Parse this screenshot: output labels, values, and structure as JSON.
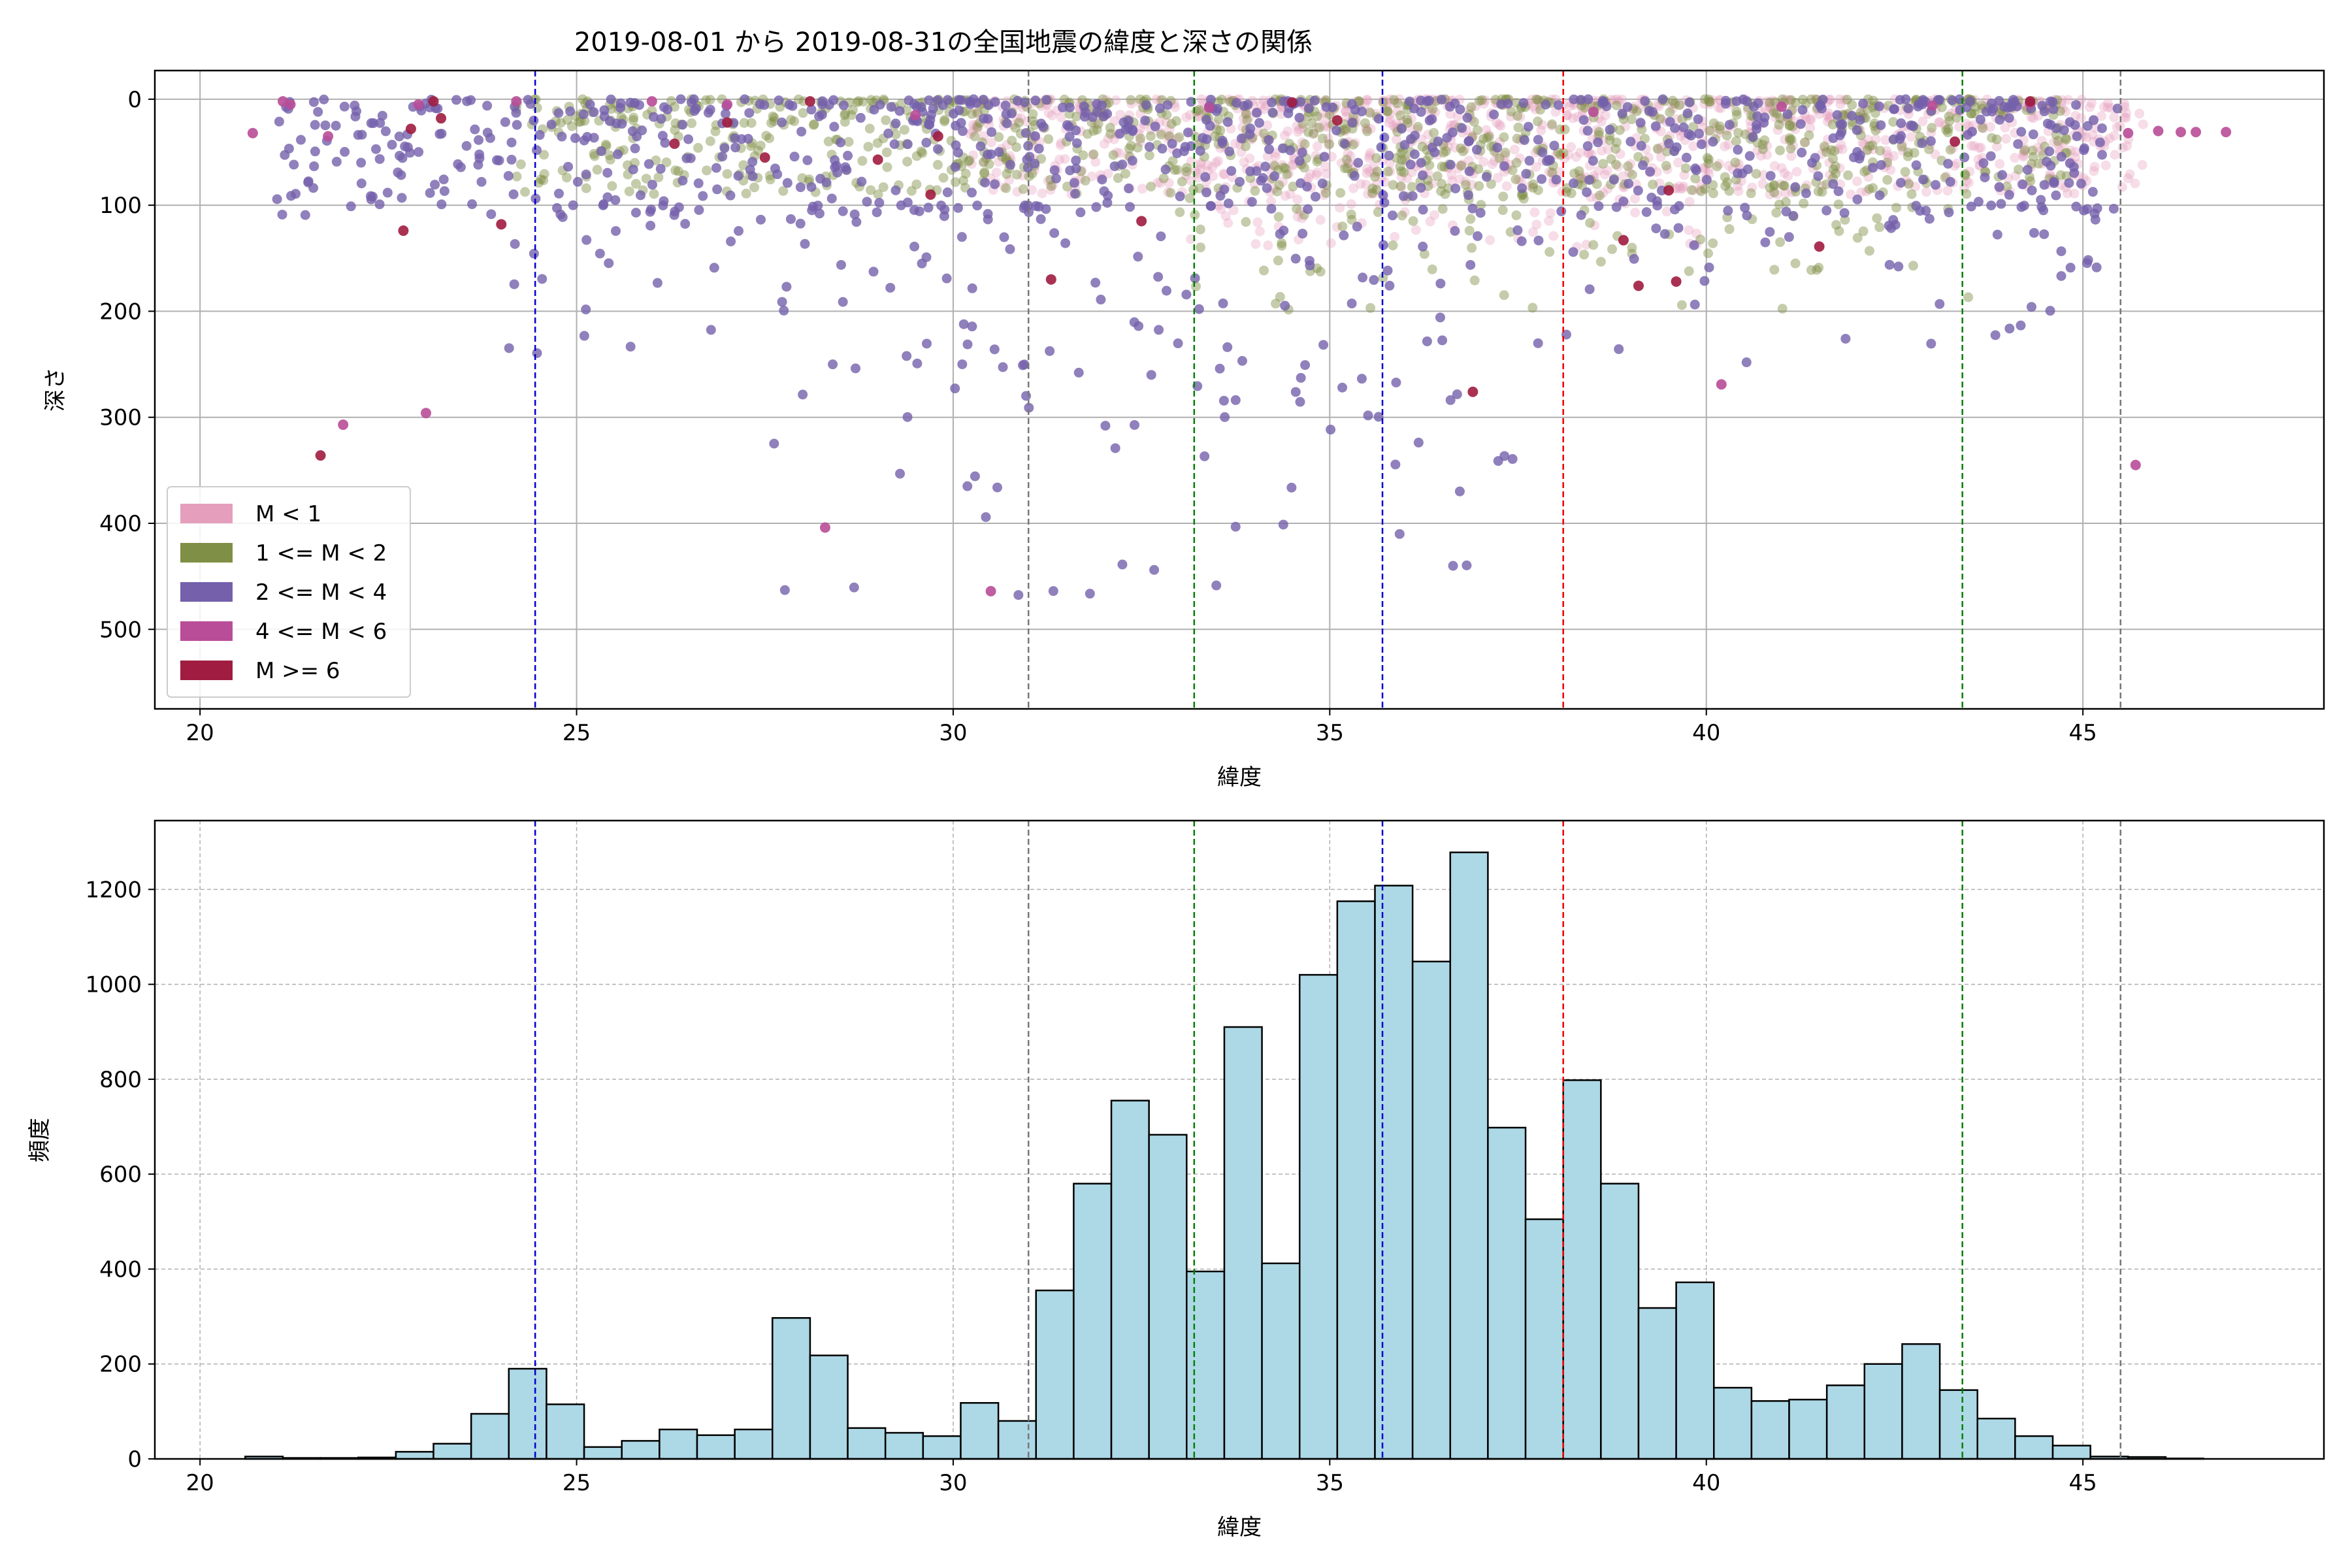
{
  "chart_data": [
    {
      "type": "scatter",
      "title": "2019-08-01 から 2019-08-31の全国地震の緯度と深さの関係",
      "xlabel": "緯度",
      "ylabel": "深さ",
      "xlim": [
        19.4,
        48.2
      ],
      "ylim": [
        575,
        -27
      ],
      "y_inverted": true,
      "grid": true,
      "legend_position": "lower-left",
      "xticks": [
        20,
        25,
        30,
        35,
        40,
        45
      ],
      "yticks": [
        0,
        100,
        200,
        300,
        400,
        500
      ],
      "series": [
        {
          "name": "M < 1",
          "color": "#e59fbd",
          "clusters": [
            {
              "lat_range": [
                30.2,
                45.8
              ],
              "depth_range": [
                0,
                90
              ],
              "count": 900
            },
            {
              "lat_range": [
                33.0,
                40.0
              ],
              "depth_range": [
                60,
                140
              ],
              "count": 120
            }
          ]
        },
        {
          "name": "1 <= M < 2",
          "color": "#7f8f45",
          "clusters": [
            {
              "lat_range": [
                24.2,
                44.8
              ],
              "depth_range": [
                0,
                90
              ],
              "count": 900
            },
            {
              "lat_range": [
                33.0,
                43.5
              ],
              "depth_range": [
                80,
                200
              ],
              "count": 120
            }
          ]
        },
        {
          "name": "2 <= M < 4",
          "color": "#7460ab",
          "clusters": [
            {
              "lat_range": [
                21.0,
                45.5
              ],
              "depth_range": [
                0,
                110
              ],
              "count": 750
            },
            {
              "lat_range": [
                24.0,
                45.5
              ],
              "depth_range": [
                100,
                250
              ],
              "count": 170
            },
            {
              "lat_range": [
                27.5,
                37.5
              ],
              "depth_range": [
                250,
                470
              ],
              "count": 60
            }
          ]
        },
        {
          "name": "4 <= M < 6",
          "color": "#b94d98",
          "points": [
            [
              20.7,
              32
            ],
            [
              21.1,
              2
            ],
            [
              21.2,
              5
            ],
            [
              21.7,
              35
            ],
            [
              21.9,
              307
            ],
            [
              23.0,
              296
            ],
            [
              28.3,
              404
            ],
            [
              30.5,
              464
            ],
            [
              45.7,
              345
            ],
            [
              46.0,
              30
            ],
            [
              46.3,
              31
            ],
            [
              46.5,
              31
            ],
            [
              46.9,
              31
            ],
            [
              40.2,
              269
            ],
            [
              22.9,
              5
            ],
            [
              24.2,
              2
            ],
            [
              26.0,
              2
            ],
            [
              27.0,
              5
            ],
            [
              29.5,
              15
            ],
            [
              33.4,
              8
            ],
            [
              38.5,
              12
            ],
            [
              41.0,
              7
            ],
            [
              43.0,
              6
            ],
            [
              44.3,
              4
            ],
            [
              45.6,
              32
            ]
          ]
        },
        {
          "name": "M >= 6",
          "color": "#a01c40",
          "points": [
            [
              21.6,
              336
            ],
            [
              22.7,
              124
            ],
            [
              22.8,
              28
            ],
            [
              23.1,
              2
            ],
            [
              23.2,
              18
            ],
            [
              24.0,
              118
            ],
            [
              26.3,
              42
            ],
            [
              27.0,
              22
            ],
            [
              27.5,
              55
            ],
            [
              28.1,
              2
            ],
            [
              29.0,
              57
            ],
            [
              29.7,
              90
            ],
            [
              29.8,
              35
            ],
            [
              31.3,
              170
            ],
            [
              32.5,
              115
            ],
            [
              34.5,
              3
            ],
            [
              35.1,
              20
            ],
            [
              36.9,
              276
            ],
            [
              38.9,
              133
            ],
            [
              39.1,
              176
            ],
            [
              39.6,
              172
            ],
            [
              39.5,
              86
            ],
            [
              41.5,
              139
            ],
            [
              43.3,
              40
            ],
            [
              44.3,
              2
            ]
          ]
        }
      ],
      "reference_lines": [
        {
          "x": 24.45,
          "color": "#0000cc"
        },
        {
          "x": 31.0,
          "color": "#777777"
        },
        {
          "x": 33.2,
          "color": "#008000"
        },
        {
          "x": 35.7,
          "color": "#0000cc"
        },
        {
          "x": 38.1,
          "color": "#ee0000"
        },
        {
          "x": 43.4,
          "color": "#008000"
        },
        {
          "x": 45.5,
          "color": "#777777"
        }
      ]
    },
    {
      "type": "bar",
      "subtype": "histogram",
      "title": "",
      "xlabel": "緯度",
      "ylabel": "頻度",
      "xlim": [
        19.4,
        48.2
      ],
      "ylim": [
        0,
        1345
      ],
      "grid": true,
      "grid_style": "dashed",
      "xticks": [
        20,
        25,
        30,
        35,
        40,
        45
      ],
      "yticks": [
        0,
        200,
        400,
        600,
        800,
        1000,
        1200
      ],
      "bar_color": "#add8e6",
      "edge_color": "#000000",
      "bin_start": 20.6,
      "bin_width": 0.5,
      "values": [
        5,
        2,
        2,
        3,
        15,
        32,
        95,
        190,
        115,
        25,
        38,
        62,
        50,
        62,
        297,
        218,
        65,
        55,
        48,
        118,
        80,
        355,
        580,
        755,
        683,
        395,
        910,
        412,
        1020,
        1175,
        1208,
        1048,
        1278,
        698,
        505,
        798,
        580,
        318,
        372,
        150,
        122,
        125,
        155,
        200,
        242,
        145,
        85,
        48,
        28,
        5,
        4,
        1,
        0,
        0
      ],
      "reference_lines": [
        {
          "x": 24.45,
          "color": "#0000cc"
        },
        {
          "x": 31.0,
          "color": "#777777"
        },
        {
          "x": 33.2,
          "color": "#008000"
        },
        {
          "x": 35.7,
          "color": "#0000cc"
        },
        {
          "x": 38.1,
          "color": "#ee0000"
        },
        {
          "x": 43.4,
          "color": "#008000"
        },
        {
          "x": 45.5,
          "color": "#777777"
        }
      ]
    }
  ]
}
